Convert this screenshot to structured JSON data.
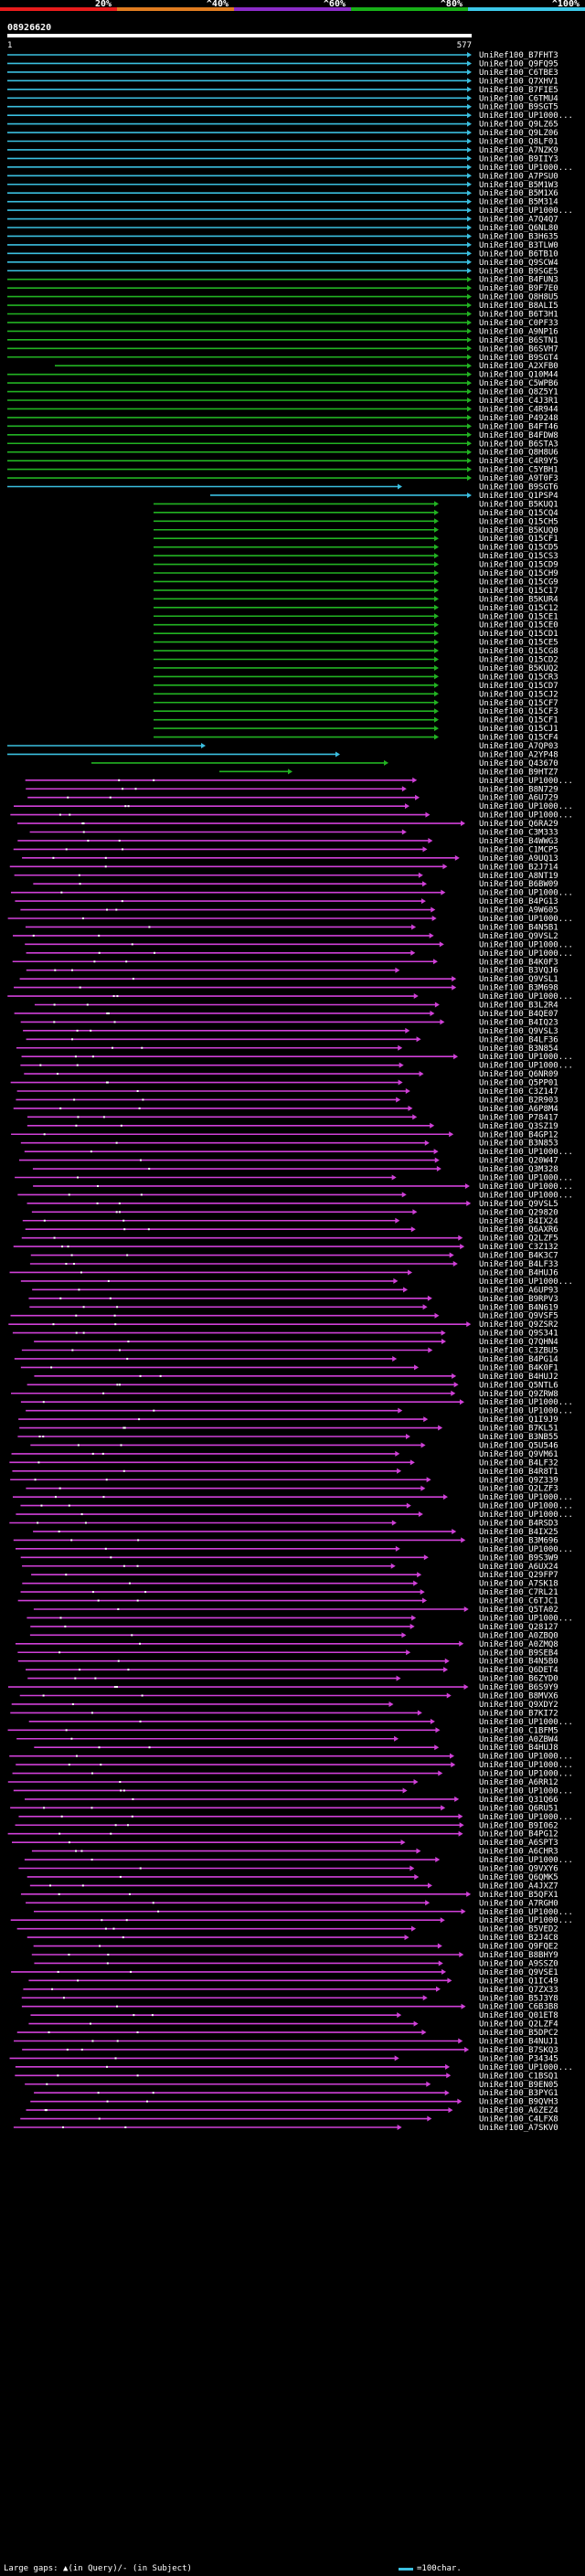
{
  "scale": {
    "labels": [
      "20%",
      "^40%",
      "^60%",
      "^80%",
      "^100%"
    ],
    "colors": [
      "#e81c1c",
      "#e07c20",
      "#8c2cc8",
      "#18b018",
      "#3cc8e8"
    ]
  },
  "query": {
    "id": "08926620",
    "start": "1",
    "end": "577"
  },
  "colors": {
    "cyan": "#3bbfe0",
    "green": "#22b322",
    "magenta": "#d040d8",
    "gap_mark": "#ffffff"
  },
  "groups": [
    {
      "color": "cyan",
      "names": [
        "UniRef100_B7FHT3",
        "UniRef100_Q9FQ95",
        "UniRef100_C6TBE3",
        "UniRef100_Q7XHV1",
        "UniRef100_B7FIE5",
        "UniRef100_C6TMU4",
        "UniRef100_B9SGT5",
        "UniRef100_UP1000...",
        "UniRef100_Q9LZ65",
        "UniRef100_Q9LZ06",
        "UniRef100_Q8LF01",
        "UniRef100_A7NZK9",
        "UniRef100_B9IIY3",
        "UniRef100_UP1000...",
        "UniRef100_A7PSU0",
        "UniRef100_B5M1W3",
        "UniRef100_B5M1X6",
        "UniRef100_B5M314",
        "UniRef100_UP1000...",
        "UniRef100_A7Q4Q7",
        "UniRef100_Q6NL80",
        "UniRef100_B3H635",
        "UniRef100_B3TLW0",
        "UniRef100_B6TB10",
        "UniRef100_Q9SCW4",
        "UniRef100_B9SGE5"
      ]
    },
    {
      "color": "green",
      "names": [
        "UniRef100_B4FUN3",
        "UniRef100_B9F7E0",
        "UniRef100_Q8H8U5",
        "UniRef100_B8ALI5",
        "UniRef100_B6T3H1",
        "UniRef100_C0PF33",
        "UniRef100_A9NP16",
        "UniRef100_B6STN1",
        "UniRef100_B6SVH7",
        "UniRef100_B9SGT4",
        "UniRef100_A2XFB0",
        "UniRef100_Q10M44",
        "UniRef100_C5WPB6",
        "UniRef100_Q8Z5Y1",
        "UniRef100_C4J3R1",
        "UniRef100_C4R944",
        "UniRef100_P49248",
        "UniRef100_B4FT46",
        "UniRef100_B4FDW8",
        "UniRef100_B6STA3",
        "UniRef100_Q8H8U6",
        "UniRef100_C4R9Y5",
        "UniRef100_C5YBH1",
        "UniRef100_A9T0F3"
      ]
    },
    {
      "color": "cyan",
      "names": [
        "UniRef100_B9SGT6",
        "UniRef100_Q1PSP4"
      ]
    },
    {
      "color": "green",
      "names": [
        "UniRef100_B5KUQ1",
        "UniRef100_Q15CQ4",
        "UniRef100_Q15CH5",
        "UniRef100_B5KUQ0",
        "UniRef100_Q15CF1",
        "UniRef100_Q15CD5",
        "UniRef100_Q15CS3",
        "UniRef100_Q15CD9",
        "UniRef100_Q15CH9",
        "UniRef100_Q15CG9",
        "UniRef100_Q15C17",
        "UniRef100_B5KUR4",
        "UniRef100_Q15C12",
        "UniRef100_Q15CE1",
        "UniRef100_Q15CE0",
        "UniRef100_Q15CD1",
        "UniRef100_Q15CE5",
        "UniRef100_Q15CG8",
        "UniRef100_Q15CD2",
        "UniRef100_B5KUQ2",
        "UniRef100_Q15CR3",
        "UniRef100_Q15CD7",
        "UniRef100_Q15CJ2",
        "UniRef100_Q15CF7",
        "UniRef100_Q15CF3",
        "UniRef100_Q15CF1",
        "UniRef100_Q15CJ1",
        "UniRef100_Q15CF4"
      ]
    },
    {
      "color": "cyan",
      "names": [
        "UniRef100_A7QP03",
        "UniRef100_A2YP48"
      ]
    },
    {
      "color": "green",
      "names": [
        "UniRef100_Q43670",
        "UniRef100_B9HTZ7"
      ]
    },
    {
      "color": "magenta",
      "names": [
        "UniRef100_UP1000...",
        "UniRef100_B8N729",
        "UniRef100_A6U729",
        "UniRef100_UP1000...",
        "UniRef100_UP1000...",
        "UniRef100_Q6RA29",
        "UniRef100_C3M333",
        "UniRef100_B4WWG3",
        "UniRef100_C1MCP5",
        "UniRef100_A9UQ13",
        "UniRef100_B2J714",
        "UniRef100_A8NT19",
        "UniRef100_B6BW09",
        "UniRef100_UP1000...",
        "UniRef100_B4PG13",
        "UniRef100_A9W605",
        "UniRef100_UP1000...",
        "UniRef100_B4N5B1",
        "UniRef100_Q9VSL2",
        "UniRef100_UP1000...",
        "UniRef100_UP1000...",
        "UniRef100_B4K0F3",
        "UniRef100_B3VQJ6",
        "UniRef100_Q9VSL1",
        "UniRef100_B3M698",
        "UniRef100_UP1000...",
        "UniRef100_B3L2R4",
        "UniRef100_B4QE07",
        "UniRef100_B4IQ23",
        "UniRef100_Q9VSL3",
        "UniRef100_B4LF36",
        "UniRef100_B3N854",
        "UniRef100_UP1000...",
        "UniRef100_UP1000...",
        "UniRef100_Q6NR09",
        "UniRef100_Q5PP01",
        "UniRef100_C3Z147",
        "UniRef100_B2R903",
        "UniRef100_A6P8M4",
        "UniRef100_P78417",
        "UniRef100_Q3SZ19",
        "UniRef100_B4GP12",
        "UniRef100_B3N853",
        "UniRef100_UP1000...",
        "UniRef100_Q20W47",
        "UniRef100_Q3M328",
        "UniRef100_UP1000...",
        "UniRef100_UP1000...",
        "UniRef100_UP1000...",
        "UniRef100_Q9VSL5",
        "UniRef100_Q29820",
        "UniRef100_B4IX24",
        "UniRef100_Q6AXR6",
        "UniRef100_Q2LZF5",
        "UniRef100_C3Z132",
        "UniRef100_B4K3C7",
        "UniRef100_B4LF33",
        "UniRef100_B4HUJ6",
        "UniRef100_UP1000...",
        "UniRef100_A6UP93",
        "UniRef100_B9RPV3",
        "UniRef100_B4N619",
        "UniRef100_Q9VSF5",
        "UniRef100_Q9ZSR2",
        "UniRef100_Q9S341",
        "UniRef100_Q7QHN4",
        "UniRef100_C3ZBU5",
        "UniRef100_B4PG14",
        "UniRef100_B4K0F1",
        "UniRef100_B4HUJ2",
        "UniRef100_Q5NTL6",
        "UniRef100_Q9ZRW8",
        "UniRef100_UP1000...",
        "UniRef100_UP1000...",
        "UniRef100_Q1I9J9",
        "UniRef100_B7KL51",
        "UniRef100_B3NB55",
        "UniRef100_Q5U546",
        "UniRef100_Q9VM61",
        "UniRef100_B4LF32",
        "UniRef100_B4R8T1",
        "UniRef100_Q9Z339",
        "UniRef100_Q2LZF3",
        "UniRef100_UP1000...",
        "UniRef100_UP1000...",
        "UniRef100_UP1000...",
        "UniRef100_B4RSD3",
        "UniRef100_B4IX25",
        "UniRef100_B3M696",
        "UniRef100_UP1000...",
        "UniRef100_B9S3W9",
        "UniRef100_A6UX24",
        "UniRef100_Q29FP7",
        "UniRef100_A7SK18",
        "UniRef100_C7RL21",
        "UniRef100_C6TJC1",
        "UniRef100_Q5TA02",
        "UniRef100_UP1000...",
        "UniRef100_Q28127",
        "UniRef100_A0ZBQ0",
        "UniRef100_A0ZMQ8",
        "UniRef100_B9SEB4",
        "UniRef100_B4N5B0",
        "UniRef100_Q6DET4",
        "UniRef100_B6ZYD0",
        "UniRef100_B6S9Y9",
        "UniRef100_B8MVX6",
        "UniRef100_Q9XDY2",
        "UniRef100_B7KI72",
        "UniRef100_UP1000...",
        "UniRef100_C1BFM5",
        "UniRef100_A0ZBW4",
        "UniRef100_B4HUJ8",
        "UniRef100_UP1000...",
        "UniRef100_UP1000...",
        "UniRef100_UP1000...",
        "UniRef100_A6RR12",
        "UniRef100_UP1000...",
        "UniRef100_Q31Q66",
        "UniRef100_Q6RU51",
        "UniRef100_UP1000...",
        "UniRef100_B9I062",
        "UniRef100_B4PG12",
        "UniRef100_A6SPT3",
        "UniRef100_A6CHR3",
        "UniRef100_UP1000...",
        "UniRef100_Q9VXY6",
        "UniRef100_Q6QMK5",
        "UniRef100_A4JXZ7",
        "UniRef100_B5QFX1",
        "UniRef100_A7RGH0",
        "UniRef100_UP1000...",
        "UniRef100_UP1000...",
        "UniRef100_B5VED2",
        "UniRef100_B2J4C8",
        "UniRef100_Q9FQE2",
        "UniRef100_B8BHY9",
        "UniRef100_A9SSZ0",
        "UniRef100_Q9VSE1",
        "UniRef100_Q1IC49",
        "UniRef100_Q7ZX33",
        "UniRef100_B5J3Y8",
        "UniRef100_C6B3B8",
        "UniRef100_Q01ET8",
        "UniRef100_Q2LZF4",
        "UniRef100_B5DPC2",
        "UniRef100_B4NUJ1",
        "UniRef100_B7SKQ3",
        "UniRef100_P34345",
        "UniRef100_UP1000...",
        "UniRef100_C1BSQ1",
        "UniRef100_B9EN05",
        "UniRef100_B3PYG1",
        "UniRef100_B9QVH3",
        "UniRef100_A6ZEZ4",
        "UniRef100_C4LFX8",
        "UniRef100_A7SKV0"
      ]
    }
  ],
  "legend": {
    "gaps_text": "Large gaps: ▲(in Query)/- (in Subject)",
    "scale_text": "=100char."
  }
}
